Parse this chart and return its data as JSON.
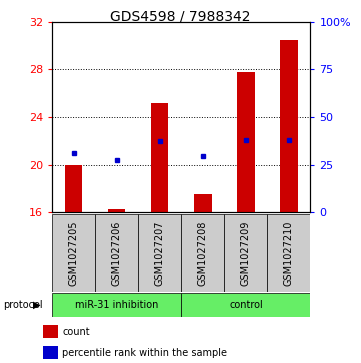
{
  "title": "GDS4598 / 7988342",
  "samples": [
    "GSM1027205",
    "GSM1027206",
    "GSM1027207",
    "GSM1027208",
    "GSM1027209",
    "GSM1027210"
  ],
  "counts": [
    20.0,
    16.3,
    25.2,
    17.5,
    27.8,
    30.5
  ],
  "count_base": 16,
  "percentile_ranks": [
    21.0,
    20.4,
    22.0,
    20.7,
    22.1,
    22.1
  ],
  "ylim": [
    16,
    32
  ],
  "yticks_left": [
    16,
    20,
    24,
    28,
    32
  ],
  "yticks_right_vals": [
    "0",
    "25",
    "50",
    "75",
    "100%"
  ],
  "yticks_right_pos": [
    16,
    20,
    24,
    28,
    32
  ],
  "bar_color": "#cc0000",
  "dot_color": "#0000cc",
  "green_color": "#66ee66",
  "gray_color": "#cccccc",
  "group_labels": [
    "miR-31 inhibition",
    "control"
  ],
  "group_sizes": [
    3,
    3
  ],
  "protocol_label": "protocol",
  "legend_count": "count",
  "legend_percentile": "percentile rank within the sample",
  "title_fontsize": 10,
  "tick_fontsize": 8,
  "label_fontsize": 7,
  "proto_fontsize": 7,
  "legend_fontsize": 7
}
